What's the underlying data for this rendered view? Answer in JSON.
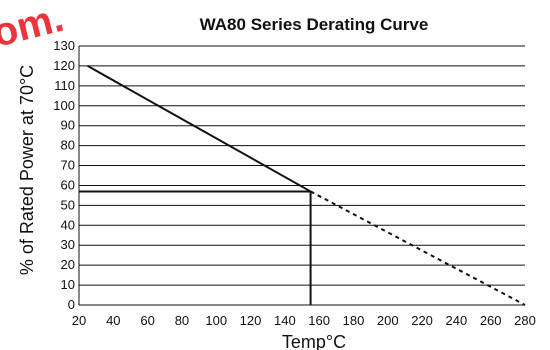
{
  "chart_data": {
    "type": "line",
    "title": "WA80 Series Derating Curve",
    "xlabel": "Temp°C",
    "ylabel": "% of Rated Power at 70°C",
    "xlim": [
      20,
      280
    ],
    "ylim": [
      0,
      130
    ],
    "x_ticks": [
      20,
      40,
      60,
      80,
      100,
      120,
      140,
      160,
      180,
      200,
      220,
      240,
      260,
      280
    ],
    "y_ticks": [
      0,
      10,
      20,
      30,
      40,
      50,
      60,
      70,
      80,
      90,
      100,
      110,
      120,
      130
    ],
    "grid": "horizontal",
    "series": [
      {
        "style": "solid",
        "points": [
          [
            25,
            120
          ],
          [
            155,
            57
          ]
        ]
      },
      {
        "style": "dashed",
        "points": [
          [
            155,
            57
          ],
          [
            280,
            0
          ]
        ]
      }
    ],
    "reference_lines": [
      {
        "style": "solid",
        "points": [
          [
            20,
            57
          ],
          [
            155,
            57
          ]
        ]
      },
      {
        "style": "solid",
        "points": [
          [
            155,
            57
          ],
          [
            155,
            0
          ]
        ]
      }
    ],
    "colors": {
      "line": "#111111",
      "grid": "#111111",
      "watermark": "#e8202a"
    }
  },
  "watermark": {
    "text": "om."
  }
}
